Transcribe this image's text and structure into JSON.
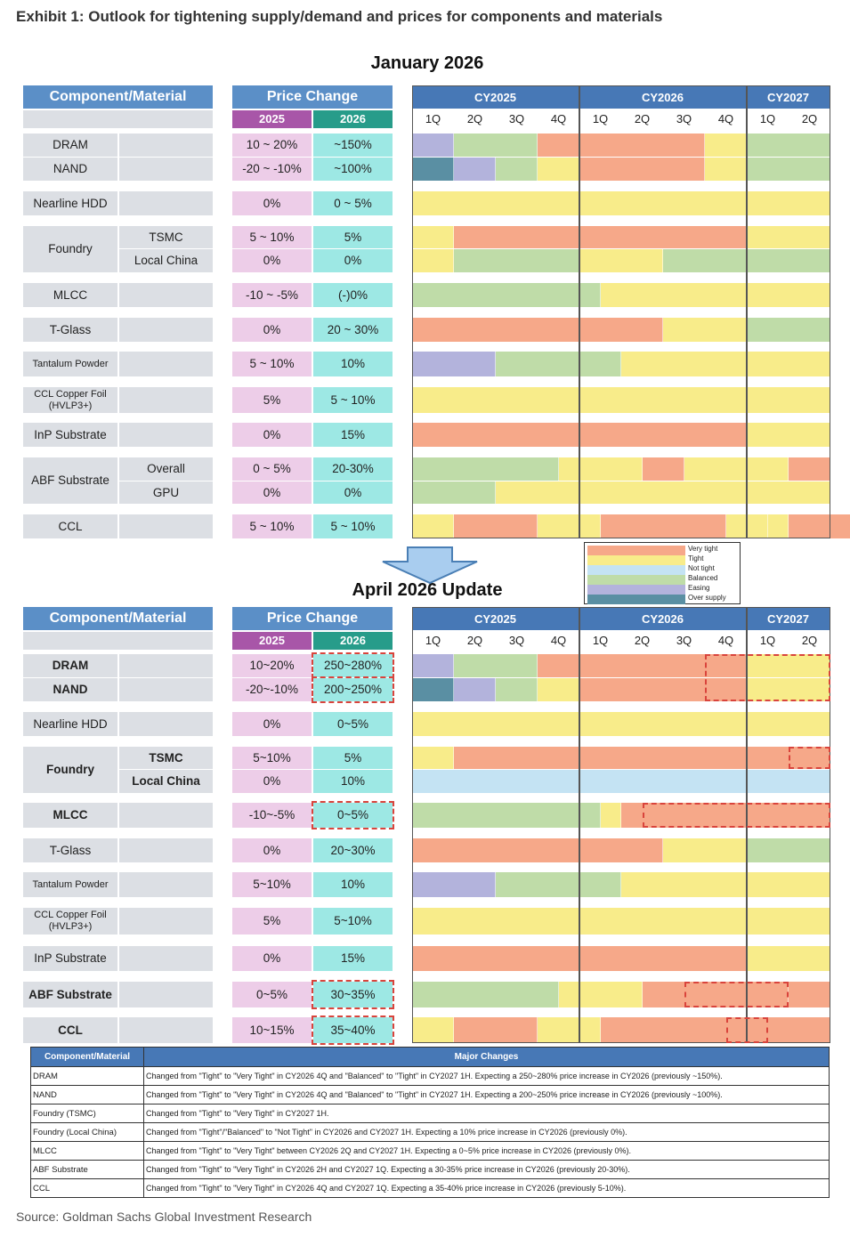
{
  "exhibit_title": "Exhibit 1: Outlook for tightening supply/demand and prices for components and materials",
  "colors": {
    "very_tight": "#f6a889",
    "tight": "#f8ec8a",
    "not_tight": "#c4e3f3",
    "balanced": "#bfdca8",
    "easing": "#b3b3dc",
    "over_supply": "#5a8fa3"
  },
  "legend": {
    "very_tight": "Very tight",
    "tight": "Tight",
    "not_tight": "Not tight",
    "balanced": "Balanced",
    "easing": "Easing",
    "over_supply": "Over supply"
  },
  "table_headers": {
    "component": "Component/Material",
    "price_change": "Price Change",
    "y2025": "2025",
    "y2026": "2026",
    "cy2025": "CY2025",
    "cy2026": "CY2026",
    "cy2027": "CY2027"
  },
  "quarters": [
    "1Q",
    "2Q",
    "3Q",
    "4Q",
    "1Q",
    "2Q",
    "3Q",
    "4Q",
    "1Q",
    "2Q"
  ],
  "chart_data": [
    {
      "type": "table",
      "title": "January 2026",
      "rows": [
        {
          "component": "DRAM",
          "sub": "",
          "p2025": "10 ~ 20%",
          "p2026": "~150%",
          "bars": [
            [
              "easing",
              1
            ],
            [
              "balanced",
              2
            ],
            [
              "very_tight",
              1
            ],
            [
              "very_tight",
              3
            ],
            [
              "tight",
              1
            ],
            [
              "balanced",
              2
            ]
          ]
        },
        {
          "component": "NAND",
          "sub": "",
          "p2025": "-20 ~ -10%",
          "p2026": "~100%",
          "bars": [
            [
              "over_supply",
              1
            ],
            [
              "easing",
              1
            ],
            [
              "balanced",
              1
            ],
            [
              "tight",
              1
            ],
            [
              "very_tight",
              3
            ],
            [
              "tight",
              1
            ],
            [
              "balanced",
              2
            ]
          ]
        },
        {
          "component": "Nearline HDD",
          "sub": "",
          "p2025": "0%",
          "p2026": "0 ~ 5%",
          "bars": [
            [
              "tight",
              4
            ],
            [
              "tight",
              4
            ],
            [
              "tight",
              2
            ]
          ]
        },
        {
          "component": "Foundry",
          "sub": "TSMC",
          "p2025": "5 ~ 10%",
          "p2026": "5%",
          "bars": [
            [
              "tight",
              1
            ],
            [
              "very_tight",
              3
            ],
            [
              "very_tight",
              4
            ],
            [
              "tight",
              2
            ]
          ]
        },
        {
          "component": "Foundry",
          "sub": "Local China",
          "p2025": "0%",
          "p2026": "0%",
          "bars": [
            [
              "tight",
              1
            ],
            [
              "balanced",
              3
            ],
            [
              "tight",
              2
            ],
            [
              "balanced",
              4
            ]
          ]
        },
        {
          "component": "MLCC",
          "sub": "",
          "p2025": "-10 ~ -5%",
          "p2026": "(-)0%",
          "bars": [
            [
              "balanced",
              4
            ],
            [
              "balanced",
              0.5
            ],
            [
              "tight",
              3.5
            ],
            [
              "tight",
              2
            ]
          ]
        },
        {
          "component": "T-Glass",
          "sub": "",
          "p2025": "0%",
          "p2026": "20 ~ 30%",
          "bars": [
            [
              "very_tight",
              4
            ],
            [
              "very_tight",
              2
            ],
            [
              "tight",
              2
            ],
            [
              "balanced",
              2
            ]
          ]
        },
        {
          "component": "Tantalum Powder",
          "sub": "",
          "p2025": "5 ~ 10%",
          "p2026": "10%",
          "bars": [
            [
              "easing",
              2
            ],
            [
              "balanced",
              2
            ],
            [
              "balanced",
              1
            ],
            [
              "tight",
              3
            ],
            [
              "tight",
              2
            ]
          ]
        },
        {
          "component": "CCL Copper Foil (HVLP3+)",
          "sub": "",
          "p2025": "5%",
          "p2026": "5 ~ 10%",
          "bars": [
            [
              "tight",
              4
            ],
            [
              "tight",
              4
            ],
            [
              "tight",
              2
            ]
          ]
        },
        {
          "component": "InP Substrate",
          "sub": "",
          "p2025": "0%",
          "p2026": "15%",
          "bars": [
            [
              "very_tight",
              4
            ],
            [
              "very_tight",
              4
            ],
            [
              "tight",
              2
            ]
          ]
        },
        {
          "component": "ABF Substrate",
          "sub": "Overall",
          "p2025": "0 ~ 5%",
          "p2026": "20-30%",
          "bars": [
            [
              "balanced",
              3.5
            ],
            [
              "tight",
              2
            ],
            [
              "very_tight",
              1
            ],
            [
              "tight",
              2.5
            ],
            [
              "very_tight",
              1
            ]
          ]
        },
        {
          "component": "ABF Substrate",
          "sub": "GPU",
          "p2025": "0%",
          "p2026": "0%",
          "bars": [
            [
              "balanced",
              2
            ],
            [
              "tight",
              2
            ],
            [
              "tight",
              4
            ],
            [
              "tight",
              2
            ]
          ]
        },
        {
          "component": "CCL",
          "sub": "",
          "p2025": "5 ~ 10%",
          "p2026": "5 ~ 10%",
          "bars": [
            [
              "tight",
              1
            ],
            [
              "very_tight",
              2
            ],
            [
              "tight",
              1
            ],
            [
              "tight",
              0.5
            ],
            [
              "very_tight",
              3
            ],
            [
              "tight",
              1
            ],
            [
              "tight",
              0.5
            ],
            [
              "very_tight",
              1.5
            ]
          ]
        }
      ]
    },
    {
      "type": "table",
      "title": "April 2026 Update",
      "rows": [
        {
          "component": "DRAM",
          "sub": "",
          "p2025": "10~20%",
          "p2026": "250~280%",
          "changed": true,
          "bars": [
            [
              "easing",
              1
            ],
            [
              "balanced",
              2
            ],
            [
              "very_tight",
              1
            ],
            [
              "very_tight",
              4
            ],
            [
              "tight",
              2
            ]
          ]
        },
        {
          "component": "NAND",
          "sub": "",
          "p2025": "-20~-10%",
          "p2026": "200~250%",
          "changed": true,
          "bars": [
            [
              "over_supply",
              1
            ],
            [
              "easing",
              1
            ],
            [
              "balanced",
              1
            ],
            [
              "tight",
              1
            ],
            [
              "very_tight",
              4
            ],
            [
              "tight",
              2
            ]
          ]
        },
        {
          "component": "Nearline HDD",
          "sub": "",
          "p2025": "0%",
          "p2026": "0~5%",
          "bars": [
            [
              "tight",
              4
            ],
            [
              "tight",
              4
            ],
            [
              "tight",
              2
            ]
          ]
        },
        {
          "component": "Foundry",
          "sub": "TSMC",
          "p2025": "5~10%",
          "p2026": "5%",
          "bars": [
            [
              "tight",
              1
            ],
            [
              "very_tight",
              3
            ],
            [
              "very_tight",
              4
            ],
            [
              "very_tight",
              2
            ]
          ]
        },
        {
          "component": "Foundry",
          "sub": "Local China",
          "p2025": "0%",
          "p2026": "10%",
          "bars": [
            [
              "not_tight",
              4
            ],
            [
              "not_tight",
              4
            ],
            [
              "not_tight",
              2
            ]
          ]
        },
        {
          "component": "MLCC",
          "sub": "",
          "p2025": "-10~-5%",
          "p2026": "0~5%",
          "changed": true,
          "bars": [
            [
              "balanced",
              4
            ],
            [
              "balanced",
              0.5
            ],
            [
              "tight",
              0.5
            ],
            [
              "very_tight",
              3
            ],
            [
              "very_tight",
              2
            ]
          ]
        },
        {
          "component": "T-Glass",
          "sub": "",
          "p2025": "0%",
          "p2026": "20~30%",
          "bars": [
            [
              "very_tight",
              4
            ],
            [
              "very_tight",
              2
            ],
            [
              "tight",
              2
            ],
            [
              "balanced",
              2
            ]
          ]
        },
        {
          "component": "Tantalum Powder",
          "sub": "",
          "p2025": "5~10%",
          "p2026": "10%",
          "bars": [
            [
              "easing",
              2
            ],
            [
              "balanced",
              2
            ],
            [
              "balanced",
              1
            ],
            [
              "tight",
              3
            ],
            [
              "tight",
              2
            ]
          ]
        },
        {
          "component": "CCL Copper Foil (HVLP3+)",
          "sub": "",
          "p2025": "5%",
          "p2026": "5~10%",
          "bars": [
            [
              "tight",
              4
            ],
            [
              "tight",
              4
            ],
            [
              "tight",
              2
            ]
          ]
        },
        {
          "component": "InP Substrate",
          "sub": "",
          "p2025": "0%",
          "p2026": "15%",
          "bars": [
            [
              "very_tight",
              4
            ],
            [
              "very_tight",
              4
            ],
            [
              "tight",
              2
            ]
          ]
        },
        {
          "component": "ABF Substrate",
          "sub": "",
          "p2025": "0~5%",
          "p2026": "30~35%",
          "changed": true,
          "bars": [
            [
              "balanced",
              3.5
            ],
            [
              "tight",
              2
            ],
            [
              "very_tight",
              3.5
            ],
            [
              "very_tight",
              1
            ]
          ]
        },
        {
          "component": "CCL",
          "sub": "",
          "p2025": "10~15%",
          "p2026": "35~40%",
          "changed": true,
          "bars": [
            [
              "tight",
              1
            ],
            [
              "very_tight",
              2
            ],
            [
              "tight",
              1
            ],
            [
              "tight",
              0.5
            ],
            [
              "very_tight",
              3.5
            ],
            [
              "very_tight",
              2
            ]
          ]
        }
      ]
    }
  ],
  "major_changes": {
    "header_component": "Component/Material",
    "header_changes": "Major Changes",
    "rows": [
      {
        "component": "DRAM",
        "change": "Changed from \"Tight\" to \"Very Tight\" in CY2026 4Q and \"Balanced\" to \"Tight\" in CY2027 1H. Expecting a 250~280% price increase in CY2026 (previously ~150%)."
      },
      {
        "component": "NAND",
        "change": "Changed from \"Tight\" to \"Very Tight\" in CY2026 4Q and \"Balanced\" to \"Tight\" in CY2027 1H. Expecting a 200~250% price increase in CY2026 (previously ~100%)."
      },
      {
        "component": "Foundry (TSMC)",
        "change": "Changed from \"Tight\" to \"Very Tight\" in CY2027 1H."
      },
      {
        "component": "Foundry (Local China)",
        "change": "Changed from \"Tight\"/\"Balanced\" to \"Not Tight\" in CY2026 and CY2027 1H. Expecting a 10% price increase in CY2026 (previously 0%)."
      },
      {
        "component": "MLCC",
        "change": "Changed from \"Tight\" to \"Very Tight\" between CY2026 2Q and CY2027 1H. Expecting a 0~5% price increase in CY2026 (previously 0%)."
      },
      {
        "component": "ABF Substrate",
        "change": "Changed from \"Tight\" to \"Very Tight\" in CY2026 2H and CY2027 1Q. Expecting a 30-35% price increase in CY2026 (previously 20-30%)."
      },
      {
        "component": "CCL",
        "change": "Changed from \"Tight\" to \"Very Tight\" in CY2026 4Q and CY2027 1Q. Expecting a 35-40% price increase in CY2026 (previously 5-10%)."
      }
    ]
  },
  "source": "Source: Goldman Sachs Global Investment Research"
}
